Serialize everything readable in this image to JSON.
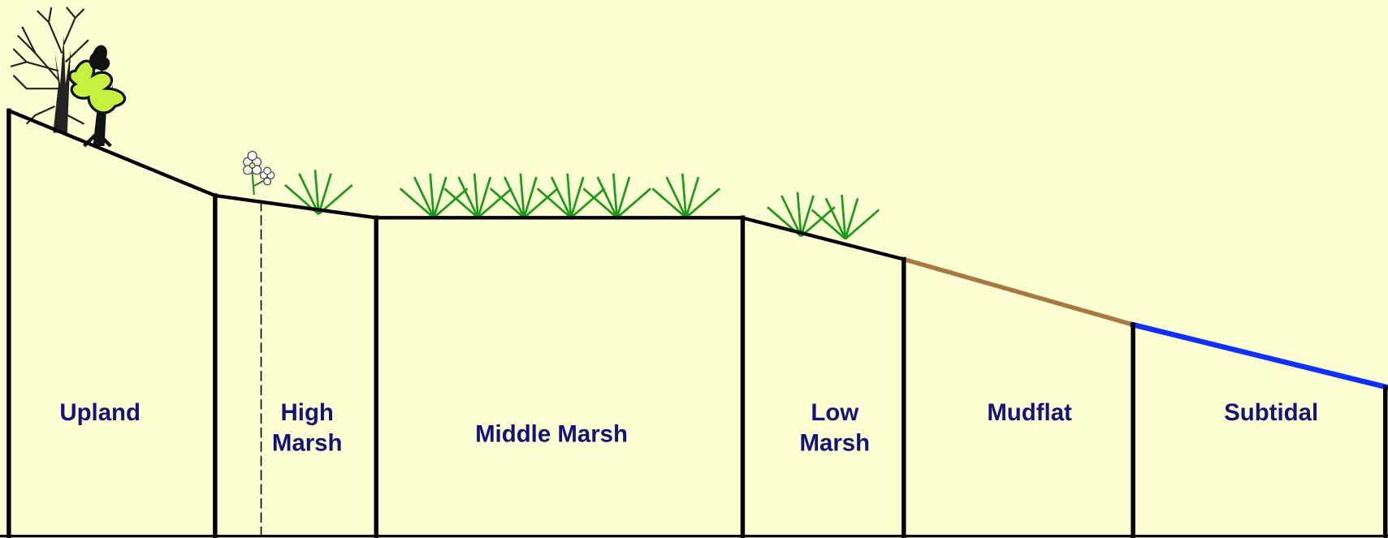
{
  "zones": [
    {
      "lines": [
        "Upland"
      ]
    },
    {
      "lines": [
        "High",
        "Marsh"
      ]
    },
    {
      "lines": [
        "Middle Marsh"
      ]
    },
    {
      "lines": [
        "Low",
        "Marsh"
      ]
    },
    {
      "lines": [
        "Mudflat"
      ]
    },
    {
      "lines": [
        "Subtidal"
      ]
    }
  ]
}
